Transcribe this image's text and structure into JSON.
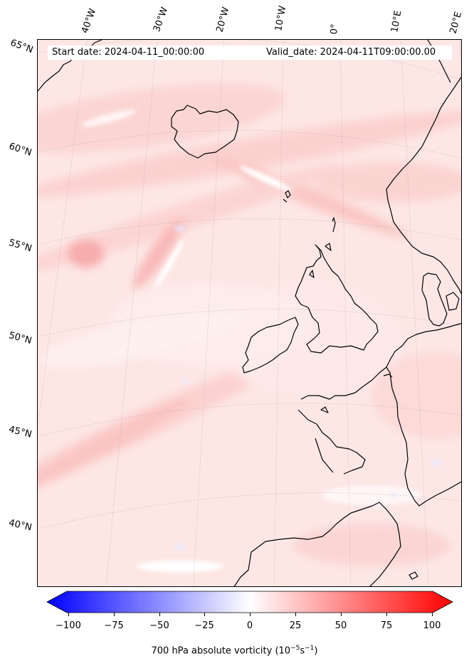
{
  "header": {
    "start_date": "Start date: 2024-04-11_00:00:00",
    "valid_date": "Valid_date: 2024-04-11T09:00:00.00"
  },
  "longitude_labels": [
    "40°W",
    "30°W",
    "20°W",
    "10°W",
    "0°",
    "10°E",
    "20°E"
  ],
  "latitude_labels": [
    "65°N",
    "60°N",
    "55°N",
    "50°N",
    "45°N",
    "40°N"
  ],
  "colorbar": {
    "ticks": [
      "−100",
      "−75",
      "−50",
      "−25",
      "0",
      "25",
      "50",
      "75",
      "100"
    ],
    "label_main": "700 hPa absolute vorticity (10",
    "label_exp1": "−5",
    "label_mid": "s",
    "label_exp2": "−1",
    "label_end": ")",
    "range": [
      -100,
      100
    ],
    "colors": {
      "min": "#0000ff",
      "mid": "#ffffff",
      "max": "#ff0000"
    }
  },
  "colors": {
    "land_outline": "#000000",
    "field_background": "#fde8e6",
    "field_high": "#f8a5a5",
    "field_low": "#e8ecff"
  }
}
